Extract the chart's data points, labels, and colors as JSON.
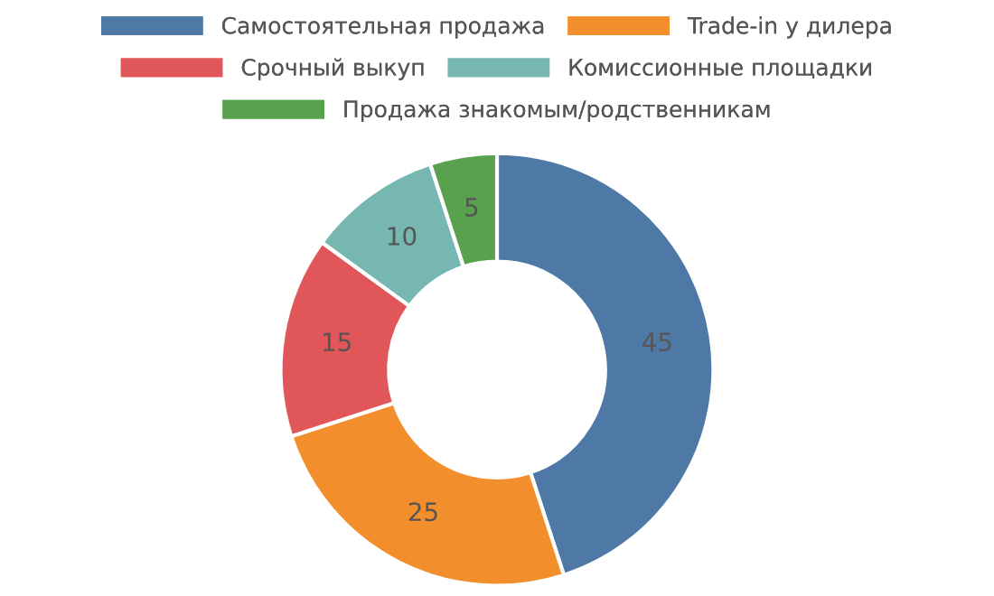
{
  "chart_data": {
    "type": "donut",
    "categories": [
      "Самостоятельная продажа",
      "Trade-in у дилера",
      "Срочный выкуп",
      "Комиссионные площадки",
      "Продажа знакомым/родственникам"
    ],
    "values": [
      45,
      25,
      15,
      10,
      5
    ],
    "colors": [
      "#4e79a7",
      "#f28e2b",
      "#e15759",
      "#76b7b2",
      "#59a14f"
    ],
    "data_labels": true,
    "legend": "top"
  }
}
